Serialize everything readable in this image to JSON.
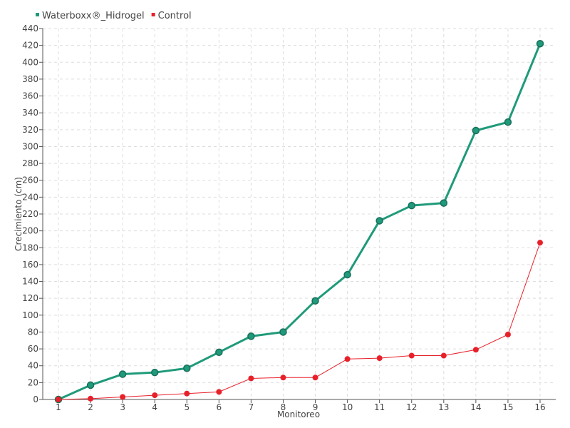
{
  "chart_data": {
    "type": "line",
    "title": "",
    "xlabel": "Monitoreo",
    "ylabel": "Crecimiento (cm)",
    "x": [
      1,
      2,
      3,
      4,
      5,
      6,
      7,
      8,
      9,
      10,
      11,
      12,
      13,
      14,
      15,
      16
    ],
    "ylim": [
      0,
      440
    ],
    "yticks": [
      0,
      20,
      40,
      60,
      80,
      100,
      120,
      140,
      160,
      180,
      200,
      220,
      240,
      260,
      280,
      300,
      320,
      340,
      360,
      380,
      400,
      420,
      440
    ],
    "grid": true,
    "legend_position": "top-left",
    "series": [
      {
        "name": "Waterboxx®_Hidrogel",
        "color": "#1f9a7a",
        "values": [
          0,
          17,
          30,
          32,
          37,
          56,
          75,
          80,
          117,
          148,
          212,
          230,
          233,
          319,
          329,
          422
        ]
      },
      {
        "name": "Control",
        "color": "#e8202a",
        "values": [
          0,
          1,
          3,
          5,
          7,
          9,
          25,
          26,
          26,
          48,
          49,
          52,
          52,
          59,
          77,
          186
        ]
      }
    ]
  }
}
